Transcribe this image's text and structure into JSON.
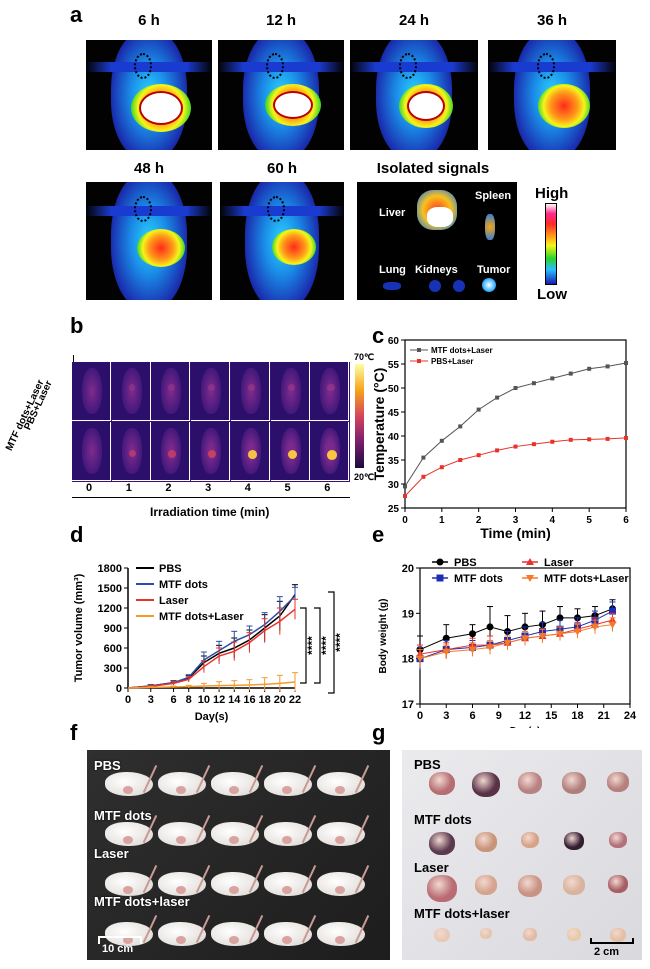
{
  "panel_a": {
    "letter": "a",
    "timepoints": [
      "6 h",
      "12 h",
      "24 h",
      "36 h",
      "48 h",
      "60 h"
    ],
    "isolated_title": "Isolated signals",
    "organs": {
      "liver": "Liver",
      "spleen": "Spleen",
      "lung": "Lung",
      "kidneys": "Kidneys",
      "tumor": "Tumor"
    },
    "scale_high": "High",
    "scale_low": "Low"
  },
  "panel_b": {
    "letter": "b",
    "row_labels": [
      "PBS+Laser",
      "MTF dots+Laser"
    ],
    "times": [
      "0",
      "1",
      "2",
      "3",
      "4",
      "5",
      "6"
    ],
    "xlabel": "Irradiation time (min)",
    "scale_top": "70℃",
    "scale_bottom": "20℃"
  },
  "panel_c": {
    "letter": "c"
  },
  "panel_d": {
    "letter": "d",
    "stars": [
      "****",
      "****",
      "****"
    ]
  },
  "panel_e": {
    "letter": "e"
  },
  "panel_f": {
    "letter": "f",
    "groups": [
      "PBS",
      "MTF dots",
      "Laser",
      "MTF dots+laser"
    ],
    "scalebar": "10 cm"
  },
  "panel_g": {
    "letter": "g",
    "groups": [
      "PBS",
      "MTF dots",
      "Laser",
      "MTF dots+laser"
    ],
    "scalebar": "2 cm"
  },
  "chart_data": [
    {
      "id": "c",
      "type": "line",
      "xlabel": "Time (min)",
      "ylabel": "Temperature (°C)",
      "xlim": [
        0,
        6
      ],
      "ylim": [
        25,
        60
      ],
      "xticks": [
        0,
        1,
        2,
        3,
        4,
        5,
        6
      ],
      "yticks": [
        25,
        30,
        35,
        40,
        45,
        50,
        55,
        60
      ],
      "x": [
        0,
        0.5,
        1,
        1.5,
        2,
        2.5,
        3,
        3.5,
        4,
        4.5,
        5,
        5.5,
        6
      ],
      "series": [
        {
          "name": "MTF dots+Laser",
          "color": "#555555",
          "values": [
            29.5,
            35.5,
            39,
            42,
            45.5,
            48,
            50,
            51,
            52,
            53,
            54,
            54.5,
            55.2
          ]
        },
        {
          "name": "PBS+Laser",
          "color": "#e8332a",
          "values": [
            27.5,
            31.5,
            33.5,
            35,
            36,
            37,
            37.8,
            38.3,
            38.8,
            39.2,
            39.3,
            39.4,
            39.6
          ]
        }
      ],
      "legend": "top-left"
    },
    {
      "id": "d",
      "type": "line",
      "xlabel": "Day(s)",
      "ylabel": "Tumor volume (mm³)",
      "xlim": [
        0,
        22
      ],
      "ylim": [
        0,
        1800
      ],
      "xticks": [
        0,
        3,
        6,
        8,
        10,
        12,
        14,
        16,
        18,
        20,
        22
      ],
      "yticks": [
        0,
        300,
        600,
        900,
        1200,
        1500,
        1800
      ],
      "x": [
        0,
        3,
        6,
        8,
        10,
        12,
        14,
        16,
        18,
        20,
        22
      ],
      "series": [
        {
          "name": "PBS",
          "color": "#000000",
          "values": [
            0,
            30,
            80,
            150,
            380,
            520,
            600,
            720,
            900,
            1080,
            1400
          ],
          "err": [
            0,
            20,
            30,
            40,
            100,
            120,
            150,
            150,
            200,
            220,
            150
          ]
        },
        {
          "name": "MTF dots",
          "color": "#2a4fa8",
          "values": [
            0,
            30,
            80,
            160,
            420,
            560,
            700,
            800,
            950,
            1150,
            1380
          ],
          "err": [
            0,
            20,
            30,
            40,
            120,
            140,
            150,
            130,
            180,
            220,
            130
          ]
        },
        {
          "name": "Laser",
          "color": "#e8332a",
          "values": [
            0,
            25,
            70,
            130,
            320,
            480,
            550,
            680,
            860,
            1000,
            1180
          ],
          "err": [
            0,
            15,
            25,
            40,
            90,
            120,
            140,
            150,
            180,
            200,
            150
          ]
        },
        {
          "name": "MTF dots+Laser",
          "color": "#f39a2b",
          "values": [
            0,
            10,
            15,
            20,
            30,
            35,
            40,
            45,
            55,
            70,
            90
          ],
          "err": [
            0,
            10,
            15,
            20,
            40,
            60,
            70,
            80,
            100,
            120,
            140
          ]
        }
      ],
      "legend": "top-left"
    },
    {
      "id": "e",
      "type": "line",
      "xlabel": "Day(s)",
      "ylabel": "Body weight (g)",
      "xlim": [
        0,
        24
      ],
      "ylim": [
        17,
        20
      ],
      "xticks": [
        0,
        3,
        6,
        9,
        12,
        15,
        18,
        21,
        24
      ],
      "yticks": [
        17,
        18,
        19,
        20
      ],
      "x": [
        0,
        3,
        6,
        8,
        10,
        12,
        14,
        16,
        18,
        20,
        22
      ],
      "series": [
        {
          "name": "PBS",
          "color": "#000000",
          "marker": "circle",
          "values": [
            18.2,
            18.45,
            18.55,
            18.7,
            18.6,
            18.7,
            18.75,
            18.9,
            18.9,
            18.95,
            19.1
          ],
          "err": [
            0.3,
            0.3,
            0.2,
            0.45,
            0.35,
            0.3,
            0.3,
            0.25,
            0.2,
            0.2,
            0.2
          ]
        },
        {
          "name": "MTF dots",
          "color": "#1f2fb0",
          "marker": "square",
          "values": [
            18.0,
            18.2,
            18.25,
            18.3,
            18.4,
            18.5,
            18.6,
            18.65,
            18.7,
            18.85,
            19.05
          ],
          "err": [
            0.25,
            0.2,
            0.15,
            0.2,
            0.2,
            0.2,
            0.2,
            0.2,
            0.2,
            0.2,
            0.2
          ]
        },
        {
          "name": "Laser",
          "color": "#e8332a",
          "marker": "triangle",
          "values": [
            18.1,
            18.2,
            18.3,
            18.3,
            18.35,
            18.45,
            18.5,
            18.55,
            18.65,
            18.75,
            18.85
          ],
          "err": [
            0.2,
            0.15,
            0.15,
            0.2,
            0.15,
            0.15,
            0.15,
            0.15,
            0.15,
            0.15,
            0.15
          ]
        },
        {
          "name": "MTF dots+Laser",
          "color": "#f37a2b",
          "marker": "tri-down",
          "values": [
            18.0,
            18.15,
            18.2,
            18.25,
            18.35,
            18.45,
            18.5,
            18.55,
            18.6,
            18.7,
            18.75
          ],
          "err": [
            0.2,
            0.15,
            0.15,
            0.15,
            0.15,
            0.15,
            0.15,
            0.15,
            0.15,
            0.15,
            0.15
          ]
        }
      ],
      "legend": "top"
    }
  ]
}
